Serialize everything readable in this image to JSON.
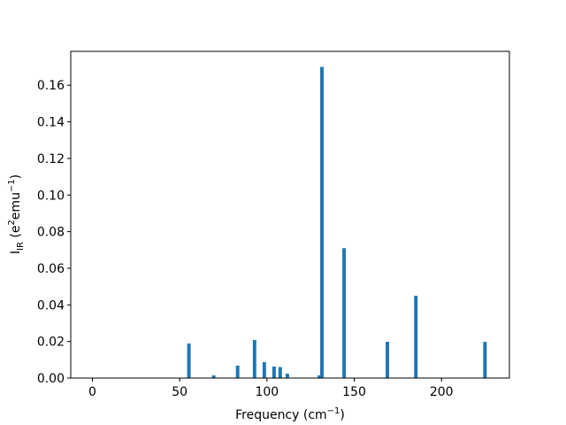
{
  "chart_data": {
    "type": "bar",
    "x": [
      55.3,
      69.5,
      83.2,
      92.9,
      98.5,
      104.1,
      107.6,
      111.7,
      130,
      131.5,
      144.2,
      169,
      185.3,
      224.9
    ],
    "values": [
      0.0189,
      0.0015,
      0.0068,
      0.0208,
      0.0087,
      0.0063,
      0.006,
      0.0024,
      0.0015,
      0.17,
      0.071,
      0.0198,
      0.045,
      0.0198
    ],
    "color": "#1f77b4",
    "bar_width": 2,
    "xlim": [
      -12.4,
      238.9
    ],
    "ylim": [
      0,
      0.1785
    ],
    "xticks": [
      0,
      50,
      100,
      150,
      200
    ],
    "yticks": [
      {
        "value": 0,
        "label": "0.00"
      },
      {
        "value": 0.02,
        "label": "0.02"
      },
      {
        "value": 0.04,
        "label": "0.04"
      },
      {
        "value": 0.06,
        "label": "0.06"
      },
      {
        "value": 0.08,
        "label": "0.08"
      },
      {
        "value": 0.1,
        "label": "0.10"
      },
      {
        "value": 0.12,
        "label": "0.12"
      },
      {
        "value": 0.14,
        "label": "0.14"
      },
      {
        "value": 0.16,
        "label": "0.16"
      }
    ],
    "xlabel": [
      {
        "text": "Frequency (cm"
      },
      {
        "text": "−1",
        "shift": "sup"
      },
      {
        "text": ")"
      }
    ],
    "ylabel": [
      {
        "text": "I"
      },
      {
        "text": "IR",
        "shift": "sub"
      },
      {
        "text": " (e"
      },
      {
        "text": "2",
        "shift": "sup"
      },
      {
        "text": "emu"
      },
      {
        "text": "−1",
        "shift": "sup"
      },
      {
        "text": ")"
      }
    ]
  }
}
